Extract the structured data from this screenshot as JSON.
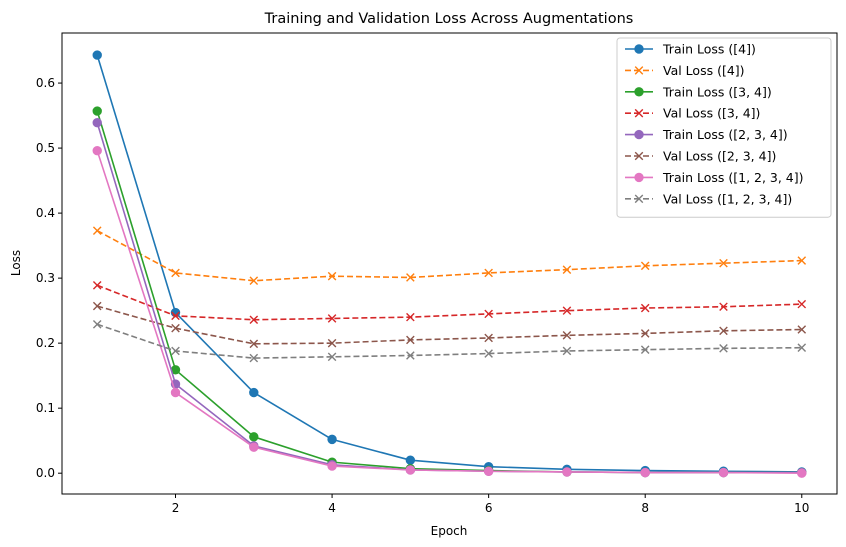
{
  "chart_data": {
    "type": "line",
    "title": "Training and Validation Loss Across Augmentations",
    "xlabel": "Epoch",
    "ylabel": "Loss",
    "xlim": [
      0.55,
      10.45
    ],
    "ylim": [
      -0.032,
      0.677
    ],
    "xticks": [
      2,
      4,
      6,
      8,
      10
    ],
    "yticks": [
      0.0,
      0.1,
      0.2,
      0.3,
      0.4,
      0.5,
      0.6
    ],
    "xtick_labels": [
      "2",
      "4",
      "6",
      "8",
      "10"
    ],
    "ytick_labels": [
      "0.0",
      "0.1",
      "0.2",
      "0.3",
      "0.4",
      "0.5",
      "0.6"
    ],
    "grid": false,
    "legend_position": "top-right",
    "x": [
      1,
      2,
      3,
      4,
      5,
      6,
      7,
      8,
      9,
      10
    ],
    "series": [
      {
        "name": "Train Loss ([4])",
        "color": "#1f77b4",
        "style": "solid",
        "marker": "circle",
        "values": [
          0.643,
          0.247,
          0.124,
          0.052,
          0.02,
          0.01,
          0.006,
          0.004,
          0.003,
          0.002
        ]
      },
      {
        "name": "Val Loss ([4])",
        "color": "#ff7f0e",
        "style": "dashed",
        "marker": "x",
        "values": [
          0.373,
          0.308,
          0.296,
          0.303,
          0.301,
          0.308,
          0.313,
          0.319,
          0.323,
          0.327
        ]
      },
      {
        "name": "Train Loss ([3, 4])",
        "color": "#2ca02c",
        "style": "solid",
        "marker": "circle",
        "values": [
          0.557,
          0.159,
          0.056,
          0.017,
          0.007,
          0.004,
          0.002,
          0.001,
          0.001,
          0.001
        ]
      },
      {
        "name": "Val Loss ([3, 4])",
        "color": "#d62728",
        "style": "dashed",
        "marker": "x",
        "values": [
          0.289,
          0.242,
          0.236,
          0.238,
          0.24,
          0.245,
          0.25,
          0.254,
          0.256,
          0.26
        ]
      },
      {
        "name": "Train Loss ([2, 3, 4])",
        "color": "#9467bd",
        "style": "solid",
        "marker": "circle",
        "values": [
          0.539,
          0.137,
          0.042,
          0.013,
          0.005,
          0.003,
          0.002,
          0.001,
          0.001,
          0.001
        ]
      },
      {
        "name": "Val Loss ([2, 3, 4])",
        "color": "#8c564b",
        "style": "dashed",
        "marker": "x",
        "values": [
          0.257,
          0.223,
          0.199,
          0.2,
          0.205,
          0.208,
          0.212,
          0.215,
          0.219,
          0.221
        ]
      },
      {
        "name": "Train Loss ([1, 2, 3, 4])",
        "color": "#e377c2",
        "style": "solid",
        "marker": "circle",
        "values": [
          0.496,
          0.124,
          0.04,
          0.011,
          0.005,
          0.003,
          0.002,
          0.001,
          0.001,
          0.0
        ]
      },
      {
        "name": "Val Loss ([1, 2, 3, 4])",
        "color": "#7f7f7f",
        "style": "dashed",
        "marker": "x",
        "values": [
          0.229,
          0.188,
          0.177,
          0.179,
          0.181,
          0.184,
          0.188,
          0.19,
          0.192,
          0.193
        ]
      }
    ]
  }
}
